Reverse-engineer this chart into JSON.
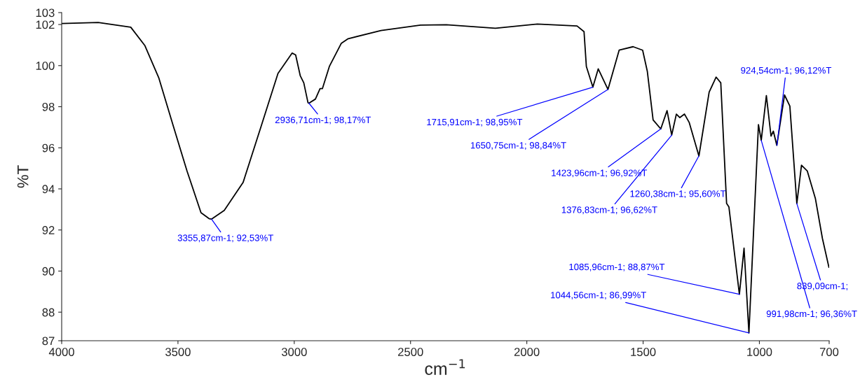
{
  "chart_data": {
    "type": "line",
    "xlabel": "cm$^{−1}$",
    "ylabel": "%T",
    "xlim": [
      4000,
      700
    ],
    "xticks": [
      4000,
      3500,
      3000,
      2500,
      2000,
      1500,
      1000,
      700
    ],
    "ylim": [
      86.61,
      102.58
    ],
    "yticks": [
      {
        "value": 86.61,
        "label": "87"
      },
      88,
      90,
      92,
      94,
      96,
      98,
      100,
      102,
      {
        "value": 102.58,
        "label": "103"
      }
    ],
    "grid": false,
    "legend": false,
    "marker": "none",
    "line_style": "solid",
    "series": [
      {
        "color": "#000000",
        "x": [
          4000,
          3843,
          3703,
          3642,
          3582,
          3522,
          3461,
          3401,
          3366,
          3356,
          3301,
          3220,
          3140,
          3070,
          3009,
          2994,
          2974,
          2959,
          2941,
          2937,
          2909,
          2889,
          2879,
          2849,
          2798,
          2768,
          2627,
          2457,
          2346,
          2135,
          1955,
          1784,
          1754,
          1744,
          1716,
          1693,
          1651,
          1603,
          1543,
          1502,
          1482,
          1457,
          1424,
          1397,
          1377,
          1357,
          1342,
          1322,
          1302,
          1260,
          1216,
          1186,
          1166,
          1141,
          1131,
          1086,
          1066,
          1045,
          1004,
          992,
          970,
          950,
          940,
          925,
          892,
          869,
          839,
          819,
          794,
          759,
          729,
          701
        ],
        "values": [
          102.05,
          102.1,
          101.87,
          100.97,
          99.39,
          97.13,
          94.87,
          92.84,
          92.55,
          92.53,
          92.95,
          94.31,
          97.13,
          99.62,
          100.61,
          100.52,
          99.5,
          99.16,
          98.2,
          98.17,
          98.37,
          98.88,
          98.88,
          99.96,
          101.08,
          101.31,
          101.71,
          101.97,
          101.99,
          101.82,
          102.02,
          101.93,
          101.65,
          99.96,
          98.95,
          99.84,
          98.84,
          100.75,
          100.92,
          100.75,
          99.73,
          97.36,
          96.92,
          97.81,
          96.62,
          97.64,
          97.47,
          97.64,
          97.24,
          95.6,
          98.71,
          99.44,
          99.16,
          93.29,
          93.12,
          88.87,
          91.12,
          86.99,
          97.13,
          96.36,
          98.54,
          96.57,
          96.81,
          96.12,
          98.57,
          98.03,
          93.29,
          95.15,
          94.87,
          93.52,
          91.59,
          90.18
        ]
      }
    ],
    "annotations": [
      {
        "text": "3355,87cm-1; 92,53%T",
        "x": 3355.87,
        "y": 92.53
      },
      {
        "text": "2936,71cm-1; 98,17%T",
        "x": 2936.71,
        "y": 98.17
      },
      {
        "text": "1715,91cm-1; 98,95%T",
        "x": 1715.91,
        "y": 98.95
      },
      {
        "text": "1650,75cm-1; 98,84%T",
        "x": 1650.75,
        "y": 98.84
      },
      {
        "text": "1423,96cm-1; 96,92%T",
        "x": 1423.96,
        "y": 96.92
      },
      {
        "text": "1376,83cm-1; 96,62%T",
        "x": 1376.83,
        "y": 96.62
      },
      {
        "text": "1260,38cm-1; 95,60%T",
        "x": 1260.38,
        "y": 95.6
      },
      {
        "text": "1085,96cm-1; 88,87%T",
        "x": 1085.96,
        "y": 88.87
      },
      {
        "text": "1044,56cm-1; 86,99%T",
        "x": 1044.56,
        "y": 86.99
      },
      {
        "text": "991,98cm-1; 96,36%T",
        "x": 991.98,
        "y": 96.36
      },
      {
        "text": "924,54cm-1; 96,12%T",
        "x": 924.54,
        "y": 96.12
      },
      {
        "text": "839,09cm-1;",
        "x": 839.09,
        "y": 93.29
      }
    ]
  }
}
